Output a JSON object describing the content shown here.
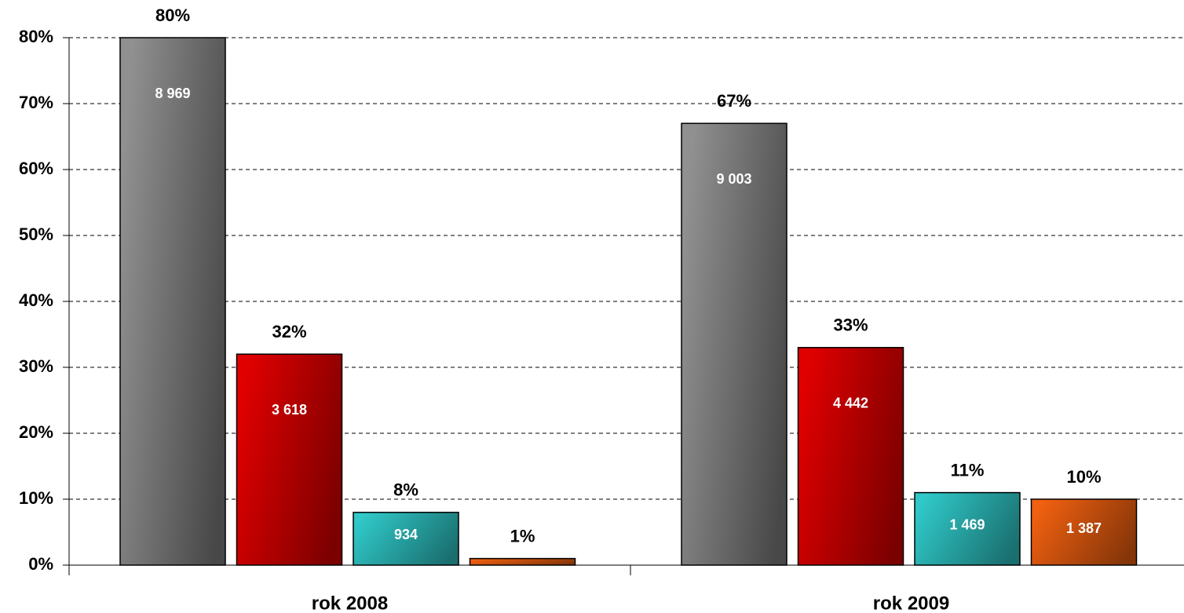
{
  "chart_data": {
    "type": "bar",
    "categories": [
      "rok 2008",
      "rok 2009"
    ],
    "series": [
      {
        "color": "#505050",
        "values": [
          80,
          67
        ],
        "value_labels": [
          "80%",
          "67%"
        ],
        "inner_labels": [
          "8 969",
          "9 003"
        ]
      },
      {
        "color": "#e00000",
        "values": [
          32,
          33
        ],
        "value_labels": [
          "32%",
          "33%"
        ],
        "inner_labels": [
          "3 618",
          "4 442"
        ]
      },
      {
        "color": "#30c8c8",
        "values": [
          8,
          11
        ],
        "value_labels": [
          "8%",
          "11%"
        ],
        "inner_labels": [
          "934",
          "1 469"
        ]
      },
      {
        "color": "#f06010",
        "values": [
          1,
          10
        ],
        "value_labels": [
          "1%",
          "10%"
        ],
        "inner_labels": [
          null,
          "1 387"
        ]
      }
    ],
    "ylim": [
      0,
      80
    ],
    "yticks": [
      {
        "value": 0,
        "label": "0%"
      },
      {
        "value": 10,
        "label": "10%"
      },
      {
        "value": 20,
        "label": "20%"
      },
      {
        "value": 30,
        "label": "30%"
      },
      {
        "value": 40,
        "label": "40%"
      },
      {
        "value": 50,
        "label": "50%"
      },
      {
        "value": 60,
        "label": "60%"
      },
      {
        "value": 70,
        "label": "70%"
      },
      {
        "value": 80,
        "label": "80%"
      }
    ],
    "grid": true
  }
}
